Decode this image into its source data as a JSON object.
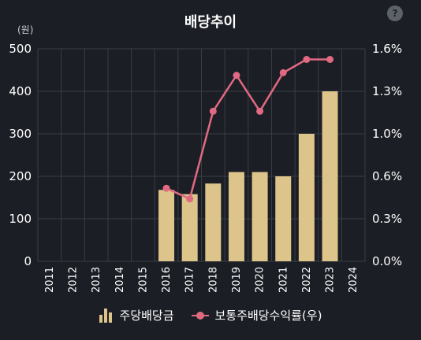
{
  "chart_data": {
    "type": "bar",
    "title": "배당추이",
    "left_unit": "(원)",
    "categories": [
      "2011",
      "2012",
      "2013",
      "2014",
      "2015",
      "2016",
      "2017",
      "2018",
      "2019",
      "2020",
      "2021",
      "2022",
      "2023",
      "2024"
    ],
    "series": [
      {
        "name": "주당배당금",
        "type": "bar",
        "axis": "left",
        "color": "#dcc48a",
        "values": [
          null,
          null,
          null,
          null,
          null,
          168,
          158,
          183,
          210,
          210,
          200,
          300,
          400,
          null
        ]
      },
      {
        "name": "보통주배당수익률(우)",
        "type": "line",
        "axis": "right",
        "color": "#e16a82",
        "values": [
          null,
          null,
          null,
          null,
          null,
          0.55,
          0.47,
          1.13,
          1.4,
          1.13,
          1.42,
          1.52,
          1.52,
          null
        ]
      }
    ],
    "left_axis": {
      "min": 0,
      "max": 500,
      "ticks": [
        "0",
        "100",
        "200",
        "300",
        "400",
        "500"
      ]
    },
    "right_axis": {
      "min": 0,
      "max": 1.6,
      "ticks": [
        "0.0%",
        "0.3%",
        "0.6%",
        "1.0%",
        "1.3%",
        "1.6%"
      ]
    },
    "grid": true,
    "legend_position": "bottom"
  },
  "help_label": "?",
  "background_color": "#1b1e24",
  "grid_color": "#3a3e46"
}
